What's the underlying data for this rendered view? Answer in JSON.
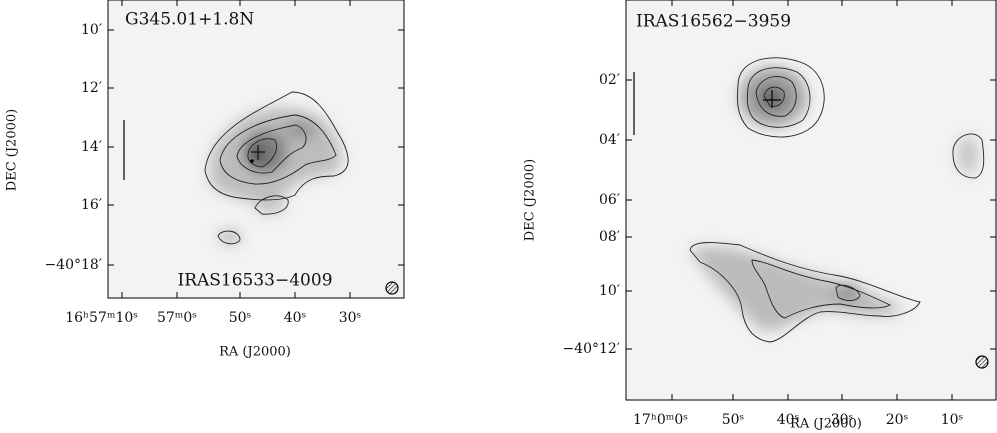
{
  "panels": [
    {
      "title": "G345.01+1.8N",
      "source": "IRAS16533−4009",
      "x_axis_label": "RA (J2000)",
      "y_axis_label": "DEC (J2000)",
      "x_tick_labels": [
        "16ʰ57ᵐ10ˢ",
        "57ᵐ0ˢ",
        "50ˢ",
        "40ˢ",
        "30ˢ"
      ],
      "y_tick_labels": [
        "10′",
        "12′",
        "14′",
        "16′",
        "−40°18′"
      ]
    },
    {
      "title": "IRAS16562−3959",
      "x_axis_label": "RA (J2000)",
      "y_axis_label": "DEC (J2000)",
      "x_tick_labels": [
        "17ʰ0ᵐ0ˢ",
        "50ˢ",
        "40ˢ",
        "30ˢ",
        "20ˢ",
        "10ˢ"
      ],
      "y_tick_labels": [
        "02′",
        "04′",
        "06′",
        "08′",
        "10′",
        "−40°12′"
      ]
    }
  ]
}
